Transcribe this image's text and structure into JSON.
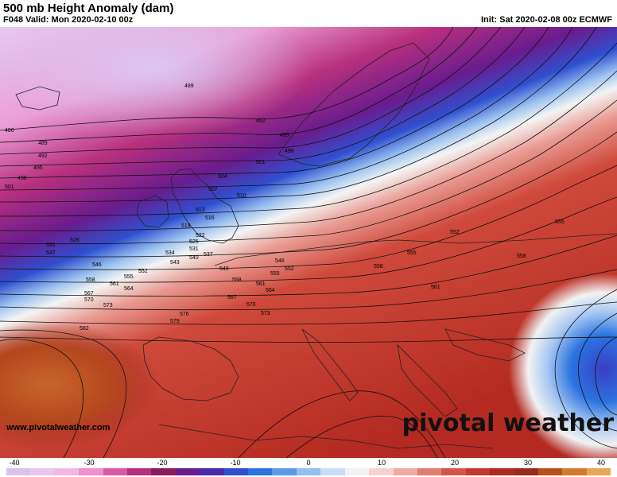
{
  "header": {
    "title": "500 mb Height Anomaly (dam)",
    "valid": "F048 Valid: Mon 2020-02-10 00z",
    "init": "Init: Sat 2020-02-08 00z ECMWF"
  },
  "footer": {
    "site": "www.pivotalweather.com",
    "logo": "pivotal weather"
  },
  "colorbar": {
    "ticks": [
      "-40",
      "-30",
      "-20",
      "-10",
      "0",
      "10",
      "20",
      "30",
      "40"
    ],
    "colors": [
      "#d9c2f0",
      "#e8c6ee",
      "#f4b6e4",
      "#ee8fcf",
      "#d85aa5",
      "#b5307d",
      "#8a1c5a",
      "#6b1c8c",
      "#4a2bb0",
      "#2f4fcf",
      "#2a73e0",
      "#5a9ae6",
      "#93c0f0",
      "#c8ddf6",
      "#f2f2f2",
      "#f6d3d0",
      "#efaaa2",
      "#e27d72",
      "#d4554a",
      "#c43a30",
      "#ae2a22",
      "#9a2a1e",
      "#b8501c",
      "#d27a2e",
      "#e8a65a"
    ]
  },
  "contour_labels": [
    {
      "text": "489"
    },
    {
      "text": "486"
    },
    {
      "text": "489"
    },
    {
      "text": "492"
    },
    {
      "text": "495"
    },
    {
      "text": "498"
    },
    {
      "text": "501"
    },
    {
      "text": "492"
    },
    {
      "text": "495"
    },
    {
      "text": "498"
    },
    {
      "text": "501"
    },
    {
      "text": "504"
    },
    {
      "text": "507"
    },
    {
      "text": "510"
    },
    {
      "text": "513"
    },
    {
      "text": "516"
    },
    {
      "text": "519"
    },
    {
      "text": "522"
    },
    {
      "text": "525"
    },
    {
      "text": "528"
    },
    {
      "text": "531"
    },
    {
      "text": "531"
    },
    {
      "text": "534"
    },
    {
      "text": "537"
    },
    {
      "text": "537"
    },
    {
      "text": "540"
    },
    {
      "text": "543"
    },
    {
      "text": "546"
    },
    {
      "text": "546"
    },
    {
      "text": "549"
    },
    {
      "text": "552"
    },
    {
      "text": "552"
    },
    {
      "text": "555"
    },
    {
      "text": "555"
    },
    {
      "text": "558"
    },
    {
      "text": "558"
    },
    {
      "text": "561"
    },
    {
      "text": "561"
    },
    {
      "text": "564"
    },
    {
      "text": "564"
    },
    {
      "text": "567"
    },
    {
      "text": "567"
    },
    {
      "text": "570"
    },
    {
      "text": "570"
    },
    {
      "text": "573"
    },
    {
      "text": "573"
    },
    {
      "text": "576"
    },
    {
      "text": "579"
    },
    {
      "text": "582"
    },
    {
      "text": "552"
    },
    {
      "text": "555"
    },
    {
      "text": "558"
    },
    {
      "text": "555"
    },
    {
      "text": "561"
    },
    {
      "text": "558"
    }
  ],
  "colors": {
    "negative_deep": "#6b1c8c",
    "negative_magenta": "#b5307d",
    "negative_light": "#e8c6ee",
    "neutral": "#f2f2f2",
    "positive": "#c43a30",
    "positive_orange": "#c8642a"
  }
}
